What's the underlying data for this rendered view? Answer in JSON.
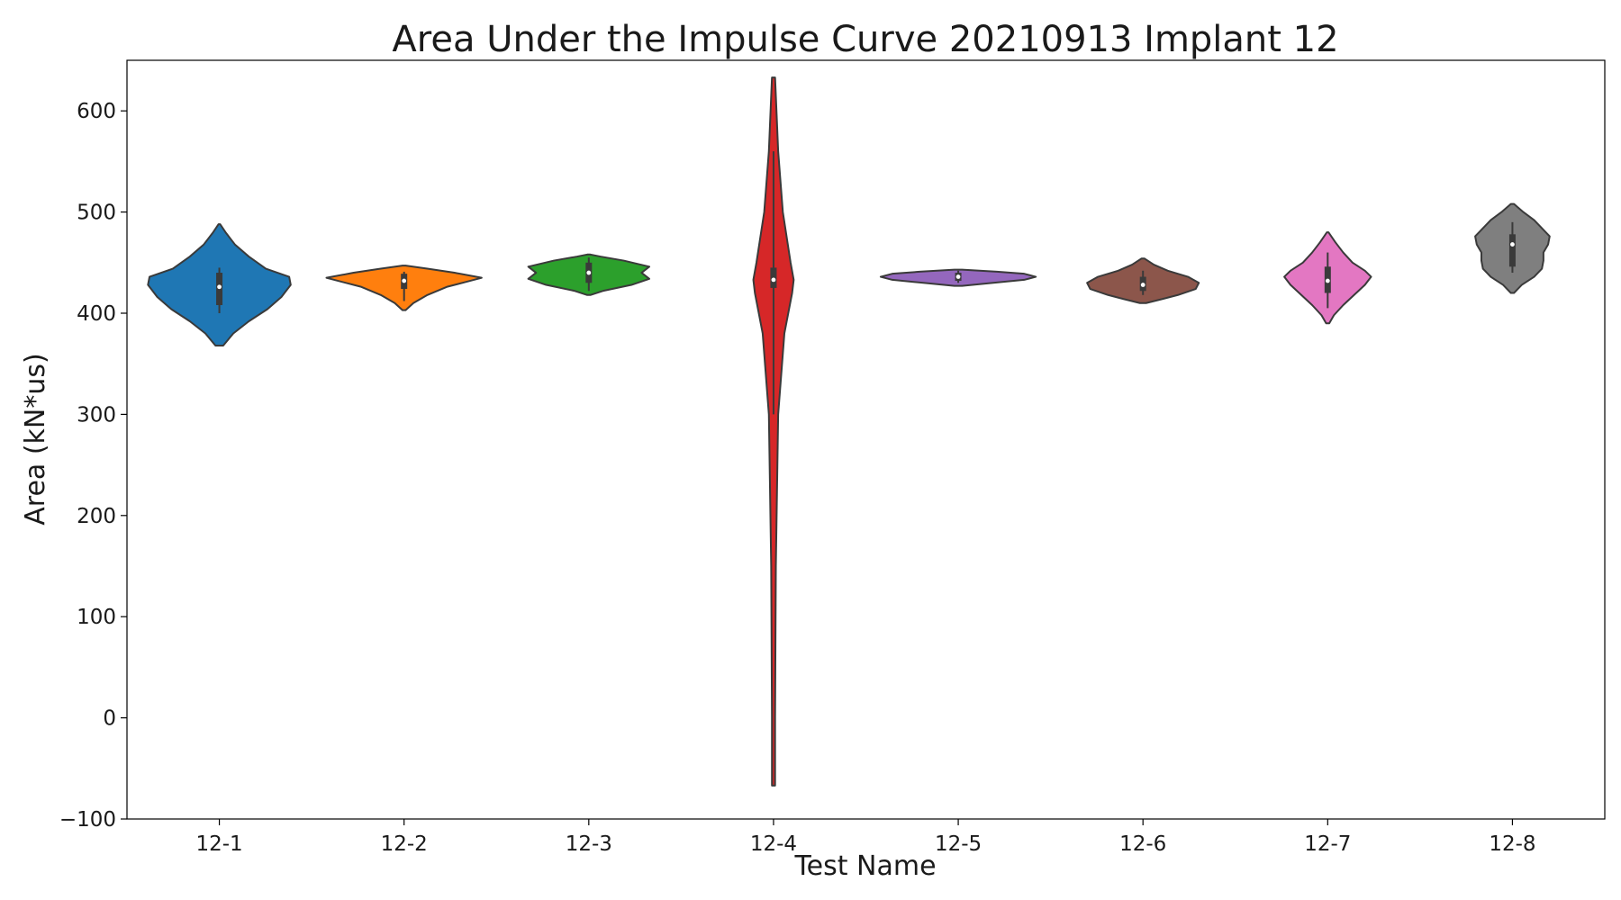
{
  "chart_data": {
    "type": "violin",
    "title": "Area Under the Impulse Curve 20210913 Implant 12",
    "xlabel": "Test Name",
    "ylabel": "Area (kN*us)",
    "ylim": [
      -100,
      650
    ],
    "yticks": [
      -100,
      0,
      100,
      200,
      300,
      400,
      500,
      600
    ],
    "grid": false,
    "categories": [
      "12-1",
      "12-2",
      "12-3",
      "12-4",
      "12-5",
      "12-6",
      "12-7",
      "12-8"
    ],
    "series": [
      {
        "category": "12-1",
        "color": "#1f77b4",
        "min": 368,
        "max": 488,
        "q1": 408,
        "median": 426,
        "q3": 440,
        "whisker_low": 400,
        "whisker_high": 445,
        "profile": [
          [
            368,
            0.05
          ],
          [
            380,
            0.18
          ],
          [
            392,
            0.38
          ],
          [
            404,
            0.62
          ],
          [
            416,
            0.8
          ],
          [
            428,
            0.92
          ],
          [
            436,
            0.9
          ],
          [
            444,
            0.6
          ],
          [
            456,
            0.38
          ],
          [
            468,
            0.2
          ],
          [
            480,
            0.08
          ],
          [
            488,
            0.01
          ]
        ]
      },
      {
        "category": "12-2",
        "color": "#ff7f0e",
        "min": 403,
        "max": 447,
        "q1": 424,
        "median": 432,
        "q3": 439,
        "whisker_low": 412,
        "whisker_high": 441,
        "profile": [
          [
            403,
            0.02
          ],
          [
            410,
            0.12
          ],
          [
            418,
            0.3
          ],
          [
            426,
            0.55
          ],
          [
            431,
            0.8
          ],
          [
            435,
            1.0
          ],
          [
            440,
            0.65
          ],
          [
            444,
            0.3
          ],
          [
            447,
            0.02
          ]
        ]
      },
      {
        "category": "12-3",
        "color": "#2ca02c",
        "min": 418,
        "max": 458,
        "q1": 430,
        "median": 440,
        "q3": 450,
        "whisker_low": 422,
        "whisker_high": 455,
        "profile": [
          [
            418,
            0.02
          ],
          [
            422,
            0.18
          ],
          [
            428,
            0.55
          ],
          [
            434,
            0.78
          ],
          [
            440,
            0.68
          ],
          [
            446,
            0.78
          ],
          [
            452,
            0.45
          ],
          [
            456,
            0.15
          ],
          [
            458,
            0.02
          ]
        ]
      },
      {
        "category": "12-4",
        "color": "#d62728",
        "min": -67,
        "max": 633,
        "q1": 425,
        "median": 433,
        "q3": 445,
        "whisker_low": 300,
        "whisker_high": 560,
        "profile": [
          [
            -67,
            0.02
          ],
          [
            0,
            0.02
          ],
          [
            150,
            0.03
          ],
          [
            300,
            0.06
          ],
          [
            380,
            0.14
          ],
          [
            420,
            0.24
          ],
          [
            433,
            0.26
          ],
          [
            450,
            0.22
          ],
          [
            500,
            0.12
          ],
          [
            560,
            0.06
          ],
          [
            633,
            0.02
          ]
        ]
      },
      {
        "category": "12-5",
        "color": "#9467bd",
        "min": 427,
        "max": 443,
        "q1": 432,
        "median": 436,
        "q3": 440,
        "whisker_low": 430,
        "whisker_high": 442,
        "profile": [
          [
            427,
            0.05
          ],
          [
            430,
            0.45
          ],
          [
            433,
            0.85
          ],
          [
            436,
            1.0
          ],
          [
            439,
            0.85
          ],
          [
            441,
            0.5
          ],
          [
            443,
            0.05
          ]
        ]
      },
      {
        "category": "12-6",
        "color": "#8c564b",
        "min": 410,
        "max": 454,
        "q1": 422,
        "median": 428,
        "q3": 436,
        "whisker_low": 418,
        "whisker_high": 442,
        "profile": [
          [
            410,
            0.04
          ],
          [
            414,
            0.25
          ],
          [
            418,
            0.45
          ],
          [
            424,
            0.68
          ],
          [
            430,
            0.72
          ],
          [
            436,
            0.58
          ],
          [
            442,
            0.32
          ],
          [
            448,
            0.14
          ],
          [
            454,
            0.02
          ]
        ]
      },
      {
        "category": "12-7",
        "color": "#e377c2",
        "min": 390,
        "max": 480,
        "q1": 420,
        "median": 432,
        "q3": 446,
        "whisker_low": 405,
        "whisker_high": 460,
        "profile": [
          [
            390,
            0.02
          ],
          [
            398,
            0.08
          ],
          [
            408,
            0.2
          ],
          [
            418,
            0.34
          ],
          [
            428,
            0.48
          ],
          [
            436,
            0.56
          ],
          [
            442,
            0.48
          ],
          [
            450,
            0.32
          ],
          [
            460,
            0.2
          ],
          [
            470,
            0.1
          ],
          [
            480,
            0.01
          ]
        ]
      },
      {
        "category": "12-8",
        "color": "#7f7f7f",
        "min": 420,
        "max": 508,
        "q1": 446,
        "median": 468,
        "q3": 478,
        "whisker_low": 440,
        "whisker_high": 490,
        "profile": [
          [
            420,
            0.02
          ],
          [
            428,
            0.12
          ],
          [
            436,
            0.28
          ],
          [
            444,
            0.38
          ],
          [
            452,
            0.4
          ],
          [
            460,
            0.4
          ],
          [
            468,
            0.46
          ],
          [
            476,
            0.48
          ],
          [
            484,
            0.38
          ],
          [
            492,
            0.28
          ],
          [
            500,
            0.14
          ],
          [
            508,
            0.02
          ]
        ]
      }
    ]
  }
}
